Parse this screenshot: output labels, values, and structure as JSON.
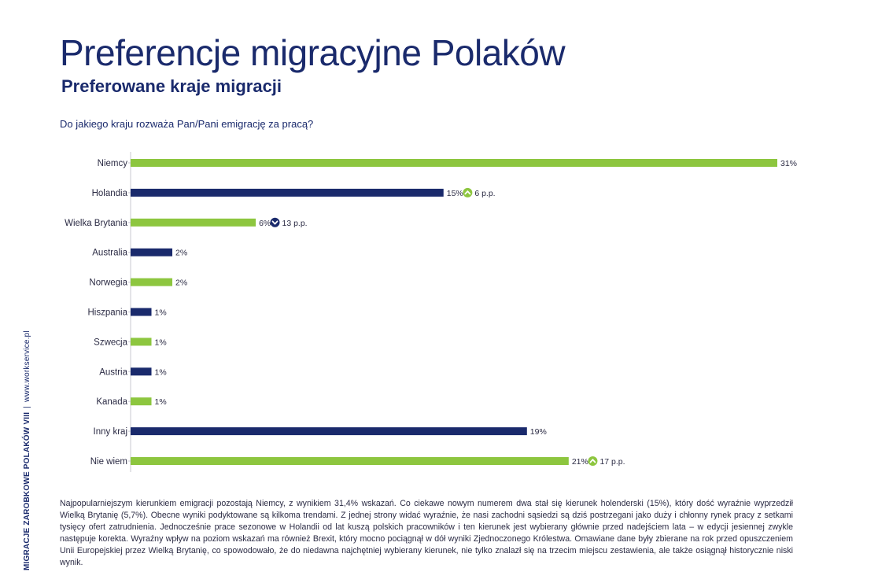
{
  "title": "Preferencje migracyjne Polaków",
  "subtitle": "Preferowane kraje migracji",
  "question": "Do jakiego kraju rozważa Pan/Pani emigrację za pracą?",
  "side_note": {
    "brand": "MIGRACJE ZAROBKOWE POLAKÓW VIII",
    "separator": "|",
    "url": "www.workservice.pl"
  },
  "colors": {
    "green": "#8dc63f",
    "navy": "#1a2a6c"
  },
  "chart_data": {
    "type": "bar",
    "orientation": "horizontal",
    "title": "Do jakiego kraju rozważa Pan/Pani emigrację za pracą?",
    "xlim": [
      0,
      31
    ],
    "categories": [
      "Niemcy",
      "Holandia",
      "Wielka Brytania",
      "Australia",
      "Norwegia",
      "Hiszpania",
      "Szwecja",
      "Austria",
      "Kanada",
      "Inny kraj",
      "Nie wiem"
    ],
    "values": [
      31,
      15,
      6,
      2,
      2,
      1,
      1,
      1,
      1,
      19,
      21
    ],
    "value_labels": [
      "31%",
      "15%",
      "6%",
      "2%",
      "2%",
      "1%",
      "1%",
      "1%",
      "1%",
      "19%",
      "21%"
    ],
    "bar_colors": [
      "#8dc63f",
      "#1a2a6c",
      "#8dc63f",
      "#1a2a6c",
      "#8dc63f",
      "#1a2a6c",
      "#8dc63f",
      "#1a2a6c",
      "#8dc63f",
      "#1a2a6c",
      "#8dc63f"
    ],
    "changes": [
      null,
      {
        "direction": "up",
        "text": "6 p.p."
      },
      {
        "direction": "down",
        "text": "13 p.p."
      },
      null,
      null,
      null,
      null,
      null,
      null,
      null,
      {
        "direction": "up",
        "text": "17 p.p."
      }
    ]
  },
  "body_text": "Najpopularniejszym kierunkiem emigracji pozostają Niemcy, z wynikiem 31,4% wskazań. Co ciekawe nowym numerem dwa stał się kierunek holenderski (15%), który dość wyraźnie wyprzedził Wielką Brytanię (5,7%). Obecne wyniki podyktowane są kilkoma trendami. Z jednej strony widać wyraźnie, że nasi zachodni sąsiedzi są dziś postrzegani jako duży i chłonny rynek pracy z setkami tysięcy ofert zatrudnienia. Jednocześnie prace sezonowe w Holandii od lat kuszą polskich pracowników i ten kierunek jest wybierany głównie przed nadejściem lata – w edycji jesiennej zwykle następuje korekta. Wyraźny wpływ na poziom wskazań ma również Brexit, który mocno pociągnął w dół wyniki Zjednoczonego Królestwa. Omawiane dane były zbierane na rok przed opuszczeniem Unii Europejskiej przez Wielką Brytanię, co spowodowało, że do niedawna najchętniej wybierany kierunek, nie tylko znalazł się na trzecim miejscu zestawienia, ale także osiągnął historycznie niski wynik."
}
